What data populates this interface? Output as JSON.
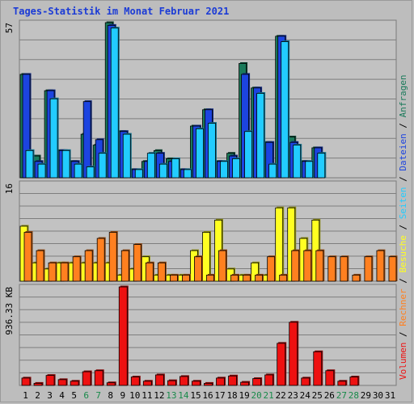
{
  "title": "Tages-Statistik im Monat Februar 2021",
  "colors": {
    "anfragen": "#1a7a5a",
    "dateien": "#1c44e0",
    "seiten": "#22ccff",
    "besuche": "#ffff22",
    "rechner": "#ff8020",
    "volumen": "#ee1111",
    "title": "#1b3bd6",
    "weekend": "#188a4a"
  },
  "legend": {
    "anfragen": "Anfragen",
    "dateien": "Dateien",
    "seiten": "Seiten",
    "besuche": "Besuche",
    "rechner": "Rechner",
    "volumen": "Volumen",
    "sep": "/"
  },
  "chart_data": [
    {
      "type": "bar",
      "name": "hits-files-pages",
      "categories": [
        "1",
        "2",
        "3",
        "4",
        "5",
        "6",
        "7",
        "8",
        "9",
        "10",
        "11",
        "12",
        "13",
        "14",
        "15",
        "16",
        "17",
        "18",
        "19",
        "20",
        "21",
        "22",
        "23",
        "24",
        "25",
        "26",
        "27",
        "28",
        "29",
        "30",
        "31"
      ],
      "ymax_label": "57",
      "ylim": [
        0,
        57
      ],
      "series": [
        {
          "name": "Anfragen",
          "values": [
            38,
            8,
            32,
            10,
            6,
            16,
            12,
            57,
            17,
            3,
            6,
            10,
            7,
            3,
            19,
            25,
            6,
            9,
            42,
            33,
            13,
            52,
            15,
            6,
            11,
            0,
            0,
            0,
            0,
            0,
            0
          ]
        },
        {
          "name": "Dateien",
          "values": [
            38,
            6,
            32,
            10,
            6,
            28,
            14,
            56,
            17,
            3,
            6,
            9,
            6,
            3,
            19,
            25,
            6,
            8,
            38,
            33,
            13,
            52,
            13,
            6,
            11,
            0,
            0,
            0,
            0,
            0,
            0
          ]
        },
        {
          "name": "Seiten",
          "values": [
            10,
            5,
            29,
            10,
            5,
            4,
            9,
            55,
            16,
            3,
            9,
            5,
            7,
            3,
            18,
            20,
            6,
            7,
            17,
            31,
            5,
            50,
            12,
            6,
            9,
            0,
            0,
            0,
            0,
            0,
            0
          ]
        }
      ]
    },
    {
      "type": "bar",
      "name": "visits-hosts",
      "ymax_label": "16",
      "ylim": [
        0,
        16
      ],
      "series": [
        {
          "name": "Besuche",
          "values": [
            9,
            3,
            2,
            3,
            3,
            3,
            3,
            3,
            1,
            2,
            4,
            1,
            1,
            1,
            5,
            8,
            10,
            2,
            1,
            3,
            1,
            12,
            12,
            7,
            10,
            0,
            0,
            0,
            0,
            0,
            0
          ]
        },
        {
          "name": "Rechner",
          "values": [
            8,
            5,
            3,
            3,
            4,
            5,
            7,
            8,
            5,
            6,
            3,
            3,
            1,
            1,
            4,
            1,
            5,
            1,
            1,
            1,
            4,
            1,
            5,
            5,
            5,
            4,
            4,
            1,
            4,
            5,
            4
          ]
        }
      ]
    },
    {
      "type": "bar",
      "name": "volume",
      "ymax_label": "936.33 KB",
      "ylim": [
        0,
        936.33
      ],
      "series": [
        {
          "name": "Volumen",
          "values": [
            70,
            20,
            95,
            55,
            40,
            130,
            140,
            25,
            936,
            80,
            40,
            100,
            45,
            85,
            40,
            20,
            70,
            90,
            30,
            65,
            100,
            400,
            600,
            70,
            320,
            140,
            40,
            80,
            0,
            0,
            0
          ]
        }
      ]
    }
  ],
  "day_labels": [
    "1",
    "2",
    "3",
    "4",
    "5",
    "6",
    "7",
    "8",
    "9",
    "10",
    "11",
    "12",
    "13",
    "14",
    "15",
    "16",
    "17",
    "18",
    "19",
    "20",
    "21",
    "22",
    "23",
    "24",
    "25",
    "26",
    "27",
    "28",
    "29",
    "30",
    "31"
  ],
  "weekend_days": [
    6,
    7,
    13,
    14,
    20,
    21,
    27,
    28
  ]
}
